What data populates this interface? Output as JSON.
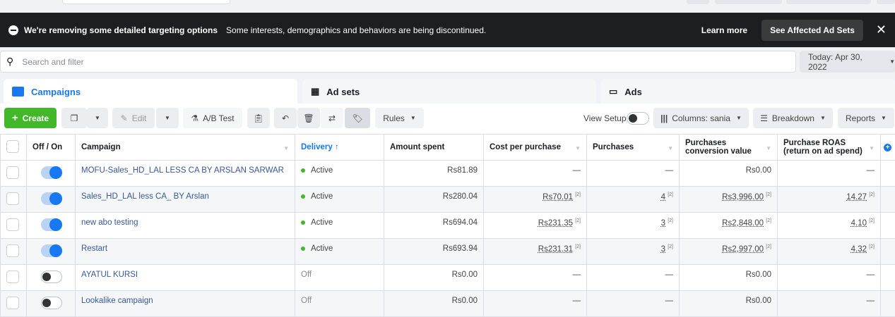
{
  "banner": {
    "title": "We're removing some detailed targeting options",
    "message": "Some interests, demographics and behaviors are being discontinued.",
    "learn_more": "Learn more",
    "see_affected": "See Affected Ad Sets"
  },
  "search": {
    "placeholder": "Search and filter"
  },
  "date": "Today: Apr 30, 2022",
  "tabs": [
    {
      "label": "Campaigns"
    },
    {
      "label": "Ad sets"
    },
    {
      "label": "Ads"
    }
  ],
  "toolbar": {
    "create": "Create",
    "edit": "Edit",
    "ab_test": "A/B Test",
    "rules": "Rules",
    "view_setup": "View Setup",
    "columns": "Columns: sania",
    "breakdown": "Breakdown",
    "reports": "Reports"
  },
  "table": {
    "headers": [
      "Off / On",
      "Campaign",
      "Delivery ↑",
      "Amount spent",
      "Cost per purchase",
      "Purchases",
      "Purchases conversion value",
      "Purchase ROAS (return on ad spend)"
    ],
    "rows": [
      {
        "on": true,
        "campaign": "MOFU-Sales_HD_LAL LESS CA BY ARSLAN SARWAR",
        "delivery": "Active",
        "spent": "Rs81.89",
        "cpp": "—",
        "purchases": "—",
        "value": "Rs0.00",
        "roas": "—"
      },
      {
        "on": true,
        "campaign": "Sales_HD_LAL less CA_ BY Arslan",
        "delivery": "Active",
        "spent": "Rs280.04",
        "cpp": "Rs70.01",
        "purchases": "4",
        "value": "Rs3,996.00",
        "roas": "14.27"
      },
      {
        "on": true,
        "campaign": "new abo testing",
        "delivery": "Active",
        "spent": "Rs694.04",
        "cpp": "Rs231.35",
        "purchases": "3",
        "value": "Rs2,848.00",
        "roas": "4.10"
      },
      {
        "on": true,
        "campaign": "Restart",
        "delivery": "Active",
        "spent": "Rs693.94",
        "cpp": "Rs231.31",
        "purchases": "3",
        "value": "Rs2,997.00",
        "roas": "4.32"
      },
      {
        "on": false,
        "campaign": "AYATUL KURSI",
        "delivery": "Off",
        "spent": "Rs0.00",
        "cpp": "—",
        "purchases": "—",
        "value": "Rs0.00",
        "roas": "—"
      },
      {
        "on": false,
        "campaign": "Lookalike campaign",
        "delivery": "Off",
        "spent": "Rs0.00",
        "cpp": "—",
        "purchases": "—",
        "value": "Rs0.00",
        "roas": "—"
      }
    ],
    "footnote_mark": "[2]"
  }
}
